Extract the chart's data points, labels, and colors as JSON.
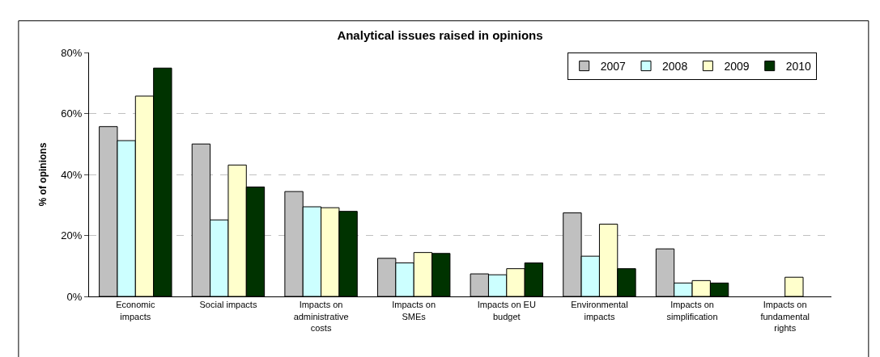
{
  "chart_data": {
    "type": "bar",
    "title": "Analytical issues raised in opinions",
    "ylabel": "% of opinions",
    "categories": [
      "Economic impacts",
      "Social impacts",
      "Impacts on administrative costs",
      "Impacts on SMEs",
      "Impacts on EU budget",
      "Environmental impacts",
      "Impacts on simplification",
      "Impacts on fundamental rights"
    ],
    "series": [
      {
        "name": "2007",
        "color": "#c0c0c0",
        "values": [
          55.7,
          50.0,
          34.4,
          12.5,
          7.4,
          27.4,
          15.6,
          null
        ]
      },
      {
        "name": "2008",
        "color": "#ccffff",
        "values": [
          51.1,
          25.1,
          29.4,
          11.0,
          7.1,
          13.2,
          4.4,
          null
        ]
      },
      {
        "name": "2009",
        "color": "#ffffcc",
        "values": [
          65.7,
          43.1,
          29.1,
          14.4,
          9.1,
          23.7,
          5.2,
          6.3
        ]
      },
      {
        "name": "2010",
        "color": "#003300",
        "values": [
          74.9,
          35.9,
          27.9,
          14.1,
          11.0,
          9.1,
          4.4,
          null
        ]
      }
    ],
    "ylim": [
      0,
      80
    ],
    "yticks": [
      {
        "value": 0,
        "label": "0%"
      },
      {
        "value": 20,
        "label": "20%"
      },
      {
        "value": 40,
        "label": "40%"
      },
      {
        "value": 60,
        "label": "60%"
      },
      {
        "value": 80,
        "label": "80%"
      }
    ],
    "grid": "y",
    "legend": "top right"
  }
}
